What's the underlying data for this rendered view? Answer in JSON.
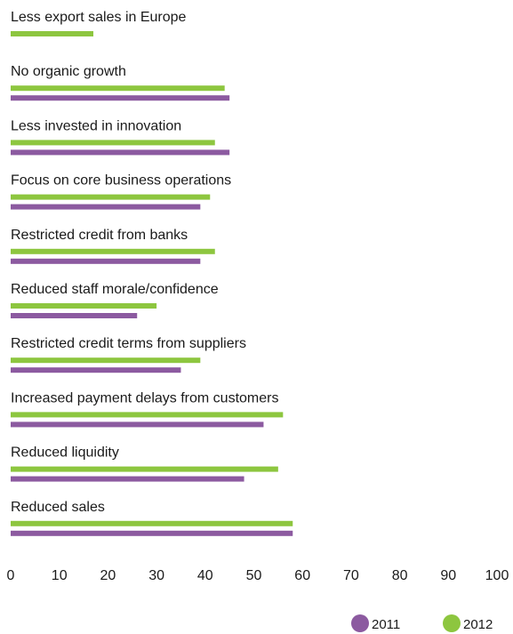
{
  "chart_data": {
    "type": "bar",
    "orientation": "horizontal",
    "categories": [
      "Less export sales in Europe",
      "No organic growth",
      "Less invested in innovation",
      "Focus on core business operations",
      "Restricted credit from banks",
      "Reduced staff morale/confidence",
      "Restricted credit terms from suppliers",
      "Increased payment delays from customers",
      "Reduced liquidity",
      "Reduced sales"
    ],
    "series": [
      {
        "name": "2012",
        "color": "#8dc63f",
        "values": [
          17,
          44,
          42,
          41,
          42,
          30,
          39,
          56,
          55,
          58
        ]
      },
      {
        "name": "2011",
        "color": "#8c5aa0",
        "values": [
          null,
          45,
          45,
          39,
          39,
          26,
          35,
          52,
          48,
          58
        ]
      }
    ],
    "xlim": [
      0,
      100
    ],
    "xticks": [
      "0",
      "10",
      "20",
      "30",
      "40",
      "50",
      "60",
      "70",
      "80",
      "90",
      "100"
    ],
    "legend": {
      "position": "bottom-right",
      "items": [
        {
          "label": "2011",
          "color": "#8c5aa0"
        },
        {
          "label": "2012",
          "color": "#8dc63f"
        }
      ]
    },
    "grid": false
  }
}
